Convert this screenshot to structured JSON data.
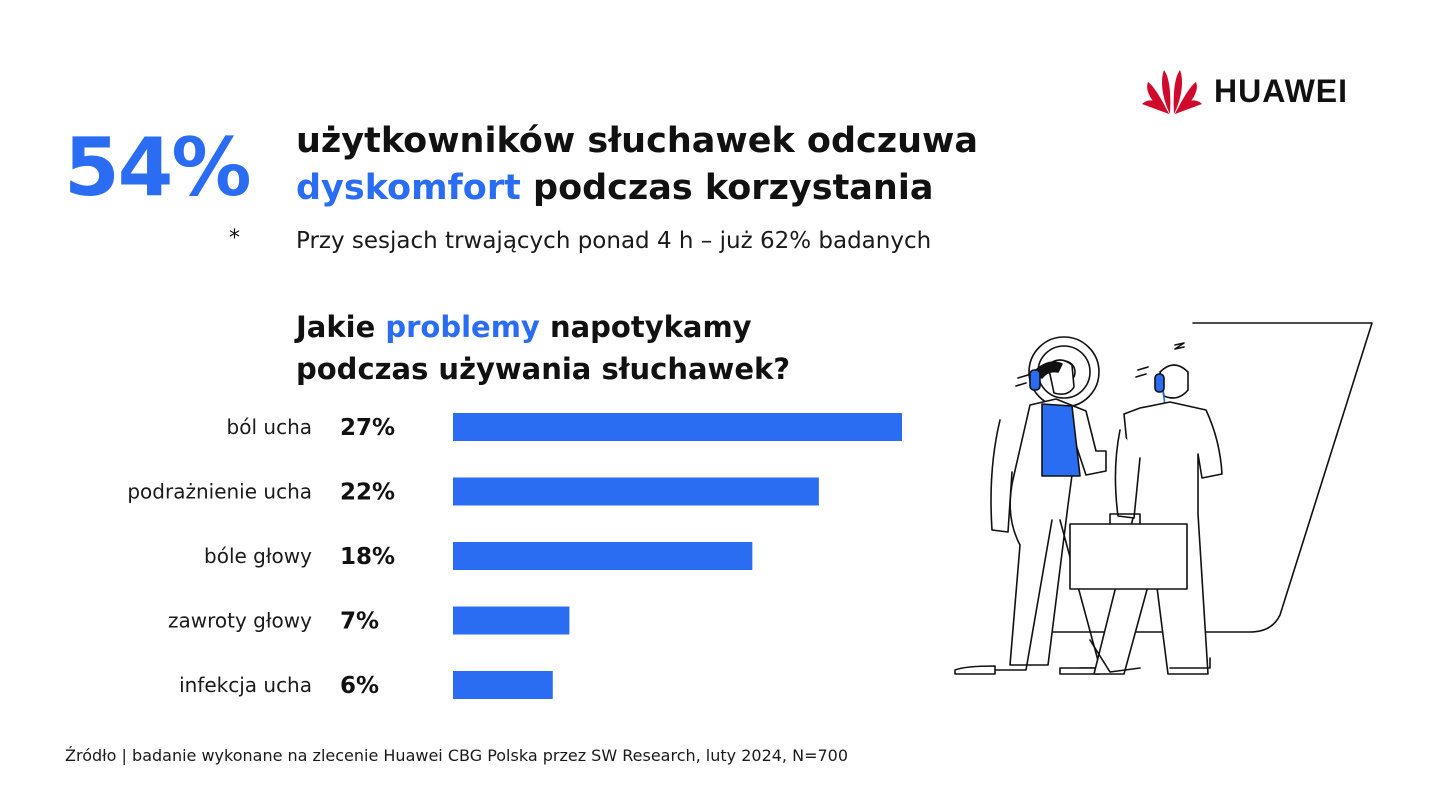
{
  "brand": {
    "name": "HUAWEI"
  },
  "header": {
    "stat": "54%",
    "headline_line1": "użytkowników słuchawek odczuwa",
    "headline_accent": "dyskomfort",
    "headline_line2_rest": " podczas korzystania",
    "asterisk": "*",
    "footnote": "Przy sesjach trwających ponad 4 h – już 62% badanych"
  },
  "question": {
    "prefix": "Jakie ",
    "accent": "problemy",
    "rest_line1": " napotykamy",
    "line2": "podczas używania słuchawek?"
  },
  "chart_data": {
    "type": "bar",
    "orientation": "horizontal",
    "categories": [
      "ból ucha",
      "podrażnienie ucha",
      "bóle głowy",
      "zawroty głowy",
      "infekcja ucha"
    ],
    "values": [
      27,
      22,
      18,
      7,
      6
    ],
    "value_labels": [
      "27%",
      "22%",
      "18%",
      "7%",
      "6%"
    ],
    "unit": "%",
    "bar_color": "#2a6cf2",
    "grid": false
  },
  "source": "Źródło | badanie wykonane na zlecenie Huawei CBG Polska przez SW Research, luty 2024, N=700",
  "colors": {
    "accent": "#2a6cf2",
    "logo_red": "#cf0a2c",
    "text": "#111111"
  }
}
